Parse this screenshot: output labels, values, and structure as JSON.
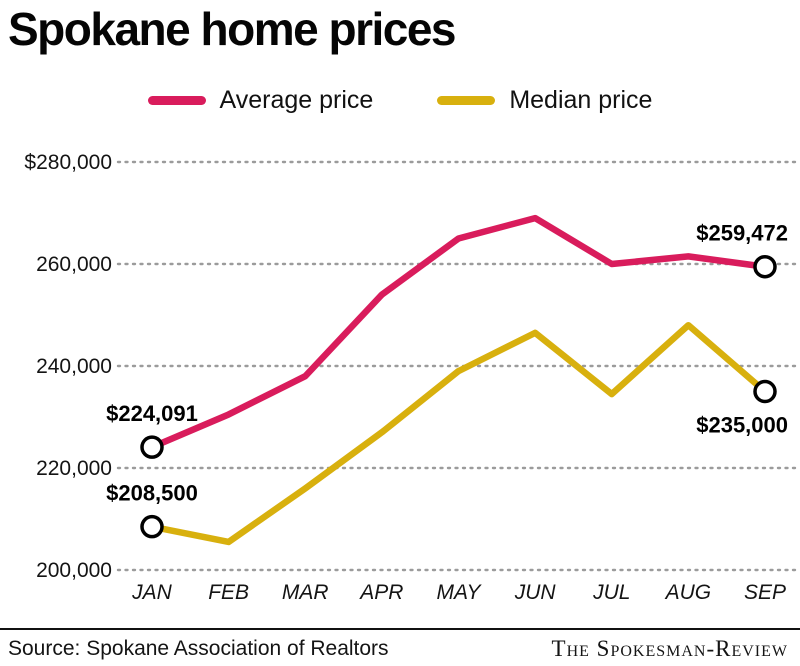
{
  "title": "Spokane home prices",
  "legend": [
    {
      "label": "Average price",
      "color": "#d91c5c"
    },
    {
      "label": "Median price",
      "color": "#d8b00e"
    }
  ],
  "chart_data": {
    "type": "line",
    "title": "Spokane home prices",
    "categories": [
      "JAN",
      "FEB",
      "MAR",
      "APR",
      "MAY",
      "JUN",
      "JUL",
      "AUG",
      "SEP"
    ],
    "series": [
      {
        "name": "Average price",
        "color": "#d91c5c",
        "values": [
          224091,
          230500,
          238000,
          254000,
          265000,
          269000,
          260000,
          261500,
          259472
        ]
      },
      {
        "name": "Median price",
        "color": "#d8b00e",
        "values": [
          208500,
          205500,
          216000,
          227000,
          239000,
          246500,
          234500,
          248000,
          235000
        ]
      }
    ],
    "ylim": [
      200000,
      280000
    ],
    "ytick_step": 20000,
    "ytick_labels": [
      "$280,000",
      "260,000",
      "240,000",
      "220,000",
      "200,000"
    ],
    "grid": "dotted horizontal gridlines",
    "legend_position": "top center",
    "markers": "open white circles with black stroke at first and last point of each series",
    "annotations": [
      {
        "text": "$224,091",
        "series": "Average price",
        "index": 0,
        "position": "above"
      },
      {
        "text": "$208,500",
        "series": "Median price",
        "index": 0,
        "position": "above"
      },
      {
        "text": "$259,472",
        "series": "Average price",
        "index": 8,
        "position": "above"
      },
      {
        "text": "$235,000",
        "series": "Median price",
        "index": 8,
        "position": "below"
      }
    ]
  },
  "footer": {
    "source": "Source: Spokane Association of Realtors",
    "credit": "The Spokesman-Review"
  }
}
